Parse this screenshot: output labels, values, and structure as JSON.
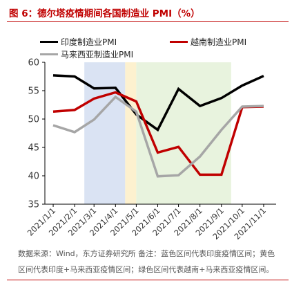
{
  "header": {
    "title": "图 6：德尔塔疫情期间各国制造业 PMI（%）"
  },
  "footer": {
    "note_line1": "数据来源：Wind，东方证券研究所  备注：蓝色区间代表印度疫情区间；黄色",
    "note_line2": "区间代表印度+马来西亚疫情区间；绿色区间代表越南+马来西亚疫情区间。"
  },
  "colors": {
    "title": "#c00000",
    "blue_band": "#dae3f3",
    "yellow_band": "#fdf1cf",
    "green_band": "#e8f3de",
    "india": "#000000",
    "vietnam": "#c00000",
    "malaysia": "#a6a6a6"
  },
  "chart_data": {
    "type": "line",
    "categories": [
      "2021/1/1",
      "2021/2/1",
      "2021/3/1",
      "2021/4/1",
      "2021/5/1",
      "2021/6/1",
      "2021/7/1",
      "2021/8/1",
      "2021/9/1",
      "2021/10/1",
      "2021/11/1"
    ],
    "ylim": [
      35,
      60
    ],
    "yticks": [
      "35",
      "40",
      "45",
      "50",
      "55",
      "60"
    ],
    "legend_placement": "top",
    "shaded_regions": [
      {
        "start": "2021/2/15",
        "end": "2021/4/15",
        "color": "blue_band"
      },
      {
        "start": "2021/4/15",
        "end": "2021/5/1",
        "color": "yellow_band"
      },
      {
        "start": "2021/5/1",
        "end": "2021/9/15",
        "color": "green_band"
      }
    ],
    "series": [
      {
        "name": "印度制造业PMI",
        "color_key": "india",
        "x": [
          "2021/1/1",
          "2021/2/1",
          "2021/3/1",
          "2021/4/1",
          "2021/5/1",
          "2021/6/1",
          "2021/7/1",
          "2021/8/1",
          "2021/9/1",
          "2021/10/1",
          "2021/11/1"
        ],
        "values": [
          57.7,
          57.5,
          55.4,
          55.5,
          50.8,
          48.1,
          55.3,
          52.3,
          53.7,
          55.9,
          57.6
        ]
      },
      {
        "name": "越南制造业PMI",
        "color_key": "vietnam",
        "x": [
          "2021/1/1",
          "2021/2/1",
          "2021/3/1",
          "2021/4/1",
          "2021/5/1",
          "2021/6/1",
          "2021/7/1",
          "2021/8/1",
          "2021/9/1",
          "2021/10/1",
          "2021/11/1"
        ],
        "values": [
          51.3,
          51.6,
          53.6,
          54.7,
          53.1,
          44.1,
          45.1,
          40.2,
          40.2,
          52.1,
          52.2
        ]
      },
      {
        "name": "马来西亚制造业PMI",
        "color_key": "malaysia",
        "x": [
          "2021/1/1",
          "2021/2/1",
          "2021/3/1",
          "2021/4/1",
          "2021/5/1",
          "2021/6/1",
          "2021/7/1",
          "2021/8/1",
          "2021/9/1",
          "2021/10/1",
          "2021/11/1"
        ],
        "values": [
          48.9,
          47.7,
          49.9,
          53.9,
          51.3,
          39.9,
          40.1,
          43.4,
          48.1,
          52.2,
          52.3
        ]
      }
    ]
  }
}
